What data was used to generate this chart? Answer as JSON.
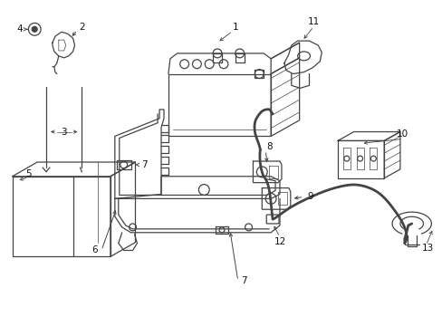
{
  "bg_color": "#ffffff",
  "line_color": "#444444",
  "text_color": "#111111",
  "lw": 0.9,
  "fs": 7.5
}
